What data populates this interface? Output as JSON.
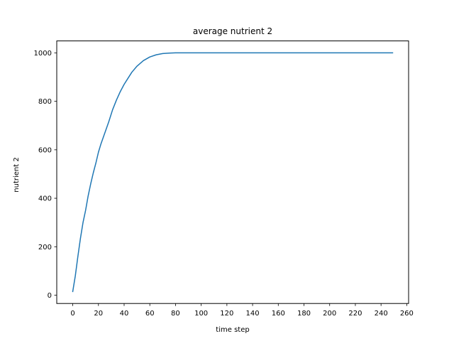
{
  "chart_data": {
    "type": "line",
    "title": "average nutrient 2",
    "xlabel": "time step",
    "ylabel": "nutrient 2",
    "xlim": [
      -12.45,
      261.45
    ],
    "ylim": [
      -34.2,
      1049.2
    ],
    "xticks": [
      0,
      20,
      40,
      60,
      80,
      100,
      120,
      140,
      160,
      180,
      200,
      220,
      240,
      260
    ],
    "xtick_labels": [
      "0",
      "20",
      "40",
      "60",
      "80",
      "100",
      "120",
      "140",
      "160",
      "180",
      "200",
      "220",
      "240",
      "260"
    ],
    "yticks": [
      0,
      200,
      400,
      600,
      800,
      1000
    ],
    "ytick_labels": [
      "0",
      "200",
      "400",
      "600",
      "800",
      "1000"
    ],
    "grid": false,
    "series": [
      {
        "color": "#1f77b4",
        "x": [
          0,
          2,
          4,
          6,
          8,
          10,
          12,
          14,
          16,
          18,
          20,
          22,
          25,
          28,
          31,
          34,
          37,
          40,
          43,
          46,
          50,
          55,
          60,
          65,
          70,
          75,
          80,
          85,
          90,
          95,
          100,
          110,
          120,
          140,
          160,
          180,
          200,
          220,
          240,
          249
        ],
        "y": [
          15,
          80,
          160,
          235,
          300,
          350,
          410,
          460,
          505,
          545,
          590,
          625,
          670,
          715,
          765,
          805,
          840,
          870,
          895,
          920,
          945,
          968,
          983,
          992,
          997,
          999,
          1000,
          1000,
          1000,
          1000,
          1000,
          1000,
          1000,
          1000,
          1000,
          1000,
          1000,
          1000,
          1000,
          1000
        ]
      }
    ]
  }
}
